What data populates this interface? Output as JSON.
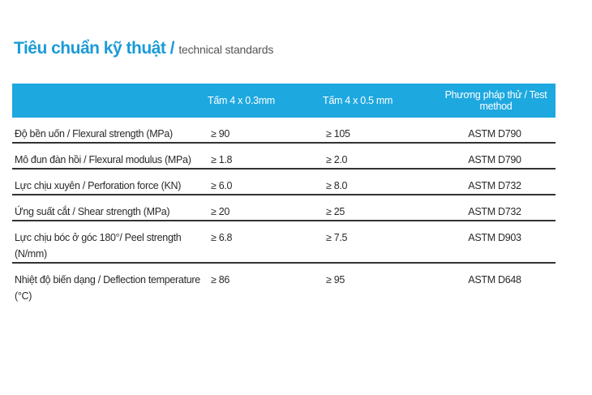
{
  "header": {
    "title": "Tiêu chuẩn kỹ thuật /",
    "subtitle": "technical standards"
  },
  "table": {
    "columns": [
      "Tấm 4 x 0.3mm",
      "Tấm 4 x 0.5 mm",
      "Phương pháp thử / Test method"
    ],
    "rows": [
      [
        "Độ bền uốn / Flexural strength (MPa)",
        "≥ 90",
        "≥ 105",
        "ASTM D790"
      ],
      [
        "Mô đun đàn hồi / Flexural modulus (MPa)",
        "≥ 1.8",
        "≥ 2.0",
        "ASTM D790"
      ],
      [
        "Lực chịu xuyên / Perforation force (KN)",
        "≥ 6.0",
        "≥ 8.0",
        "ASTM D732"
      ],
      [
        "Ứng suất cắt / Shear strength (MPa)",
        "≥ 20",
        "≥ 25",
        "ASTM D732"
      ],
      [
        "Lực chịu bóc ở góc 180°/  Peel strength (N/mm)",
        "≥ 6.8",
        "≥ 7.5",
        "ASTM D903"
      ],
      [
        "Nhiệt độ biến dạng / Deflection temperature (°C)",
        "≥ 86",
        "≥ 95",
        "ASTM D648"
      ]
    ]
  }
}
